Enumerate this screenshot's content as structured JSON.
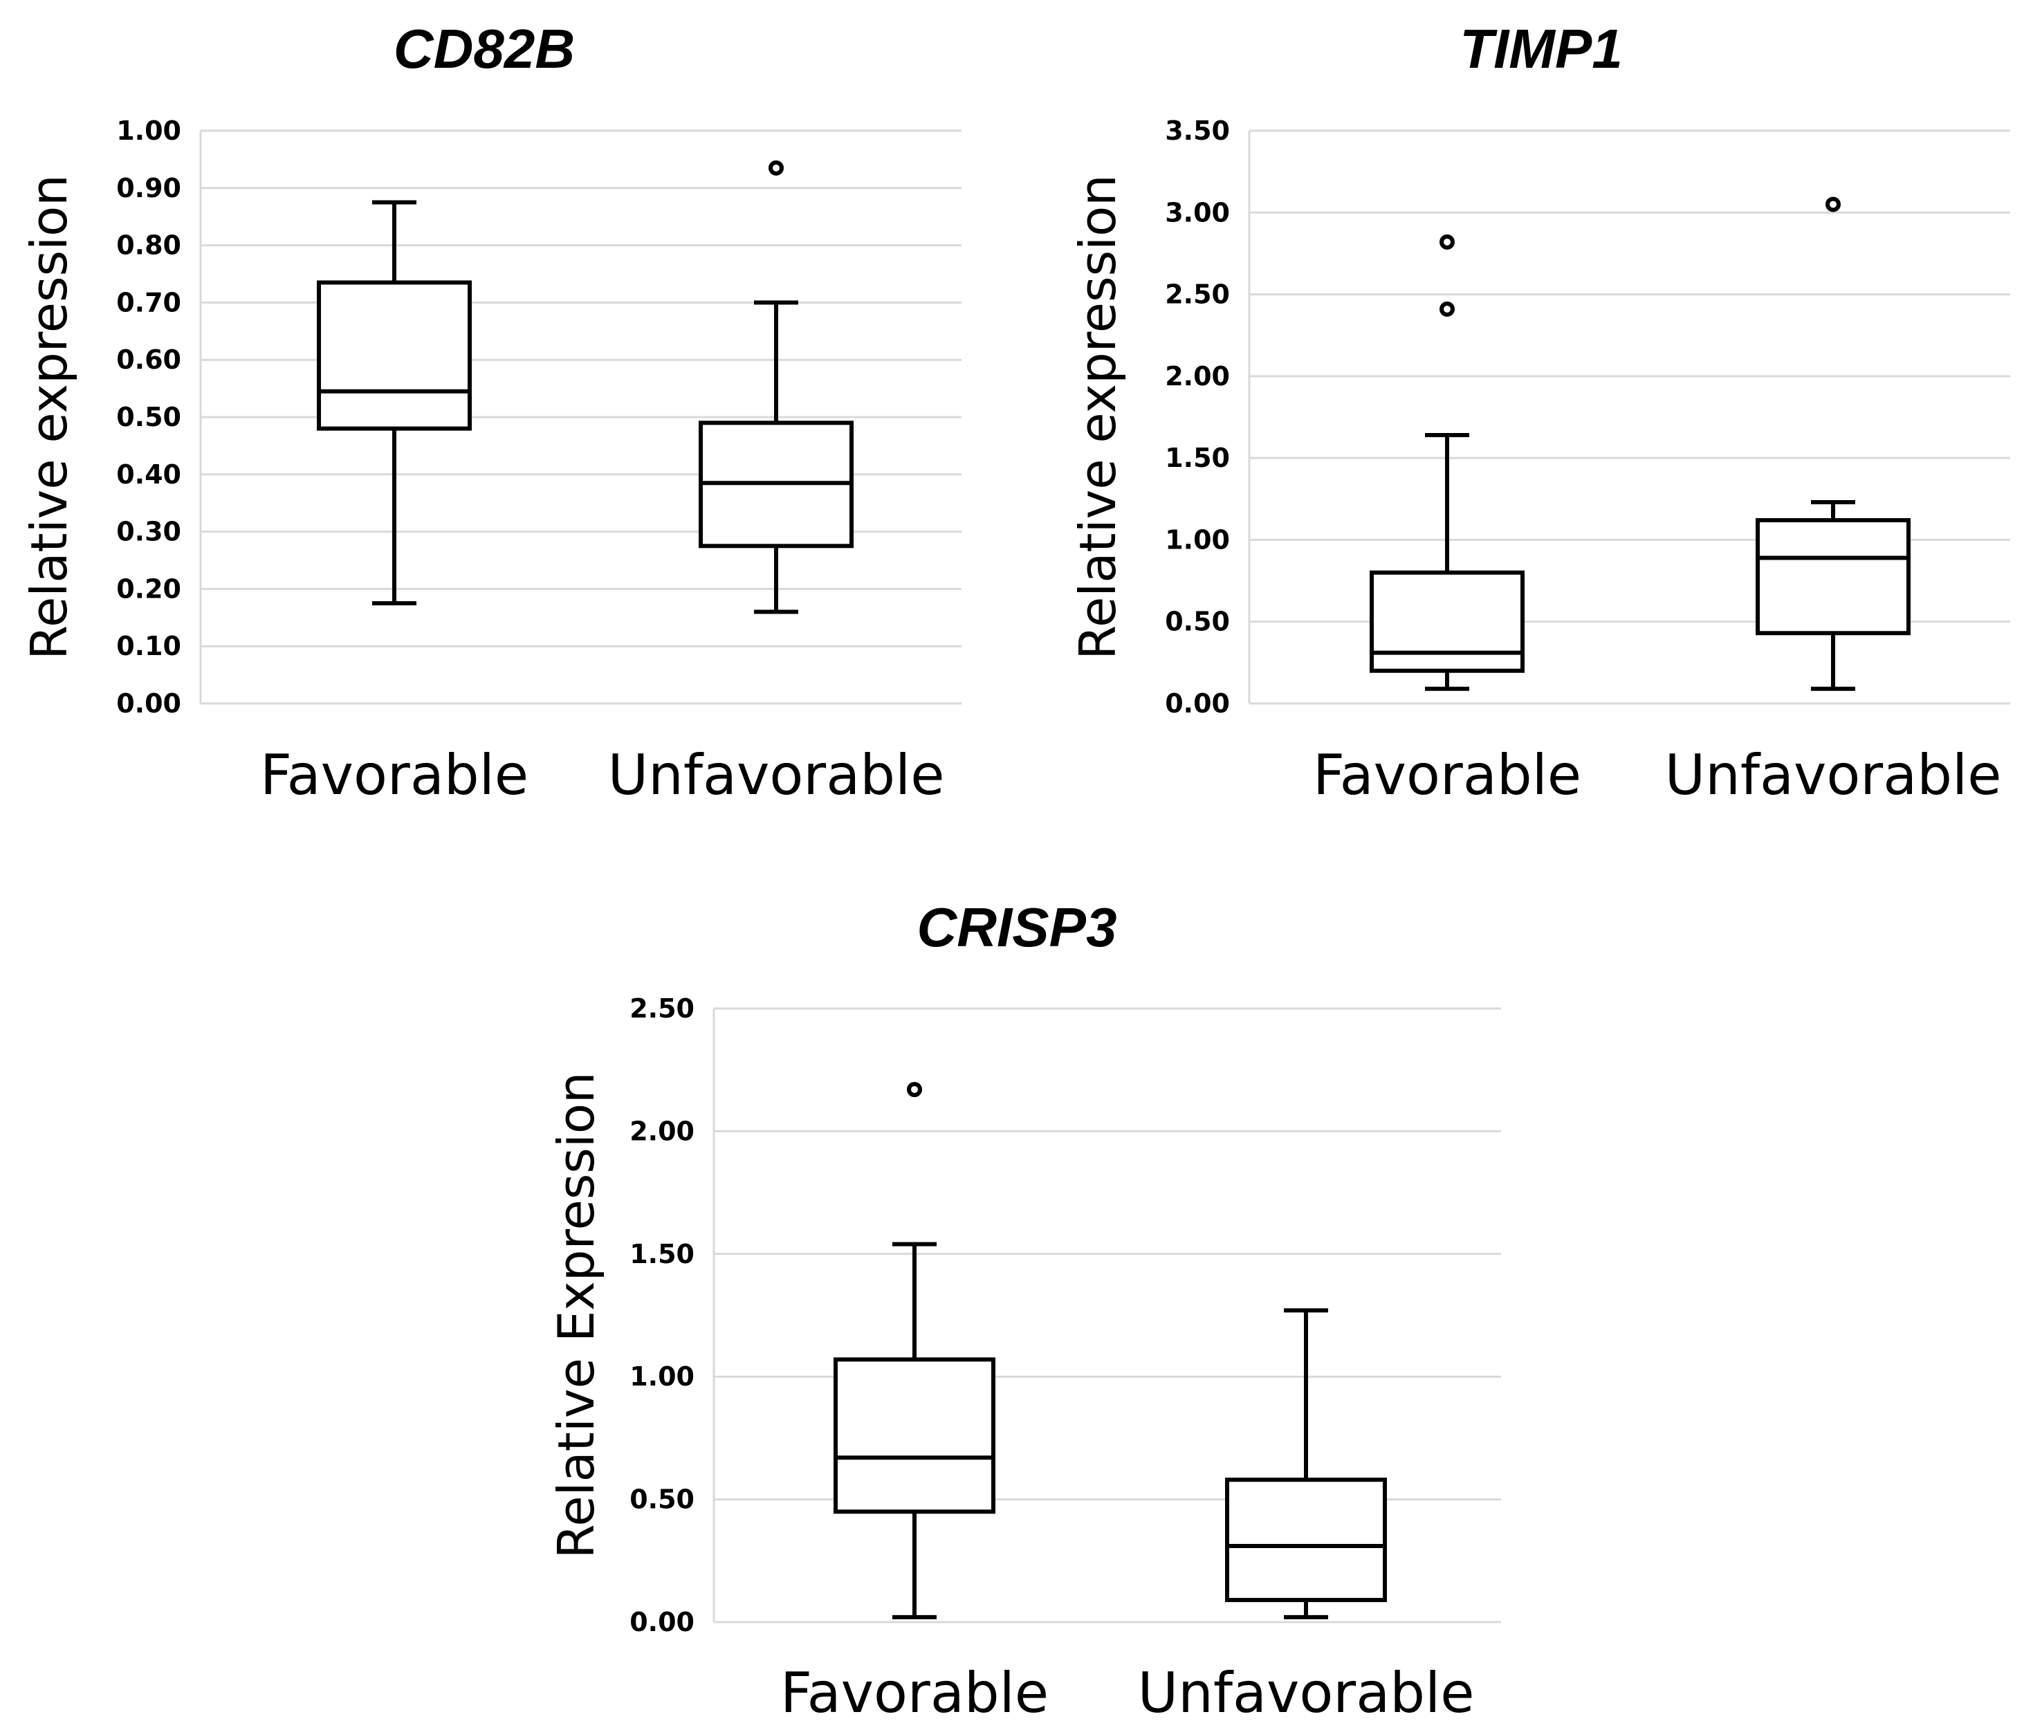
{
  "chart_data": [
    {
      "type": "boxplot",
      "title": "CD82B",
      "ylabel": "Relative expression",
      "xlabel": "",
      "ylim": [
        0,
        1.0
      ],
      "yticks": [
        "0.00",
        "0.10",
        "0.20",
        "0.30",
        "0.40",
        "0.50",
        "0.60",
        "0.70",
        "0.80",
        "0.90",
        "1.00"
      ],
      "ytick_values": [
        0,
        0.1,
        0.2,
        0.3,
        0.4,
        0.5,
        0.6,
        0.7,
        0.8,
        0.9,
        1.0
      ],
      "categories": [
        "Favorable",
        "Unfavorable"
      ],
      "boxes": [
        {
          "category": "Favorable",
          "min": 0.175,
          "q1": 0.48,
          "median": 0.545,
          "q3": 0.735,
          "max": 0.875,
          "outliers": []
        },
        {
          "category": "Unfavorable",
          "min": 0.16,
          "q1": 0.275,
          "median": 0.385,
          "q3": 0.49,
          "max": 0.7,
          "outliers": [
            0.935
          ]
        }
      ]
    },
    {
      "type": "boxplot",
      "title": "TIMP1",
      "ylabel": "Relative expression",
      "xlabel": "",
      "ylim": [
        0,
        3.5
      ],
      "yticks": [
        "0.00",
        "0.50",
        "1.00",
        "1.50",
        "2.00",
        "2.50",
        "3.00",
        "3.50"
      ],
      "ytick_values": [
        0,
        0.5,
        1.0,
        1.5,
        2.0,
        2.5,
        3.0,
        3.5
      ],
      "categories": [
        "Favorable",
        "Unfavorable"
      ],
      "boxes": [
        {
          "category": "Favorable",
          "min": 0.09,
          "q1": 0.2,
          "median": 0.31,
          "q3": 0.8,
          "max": 1.64,
          "outliers": [
            2.41,
            2.82
          ]
        },
        {
          "category": "Unfavorable",
          "min": 0.09,
          "q1": 0.43,
          "median": 0.89,
          "q3": 1.12,
          "max": 1.23,
          "outliers": [
            3.05
          ]
        }
      ]
    },
    {
      "type": "boxplot",
      "title": "CRISP3",
      "ylabel": "Relative Expression",
      "xlabel": "",
      "ylim": [
        0,
        2.5
      ],
      "yticks": [
        "0.00",
        "0.50",
        "1.00",
        "1.50",
        "2.00",
        "2.50"
      ],
      "ytick_values": [
        0,
        0.5,
        1.0,
        1.5,
        2.0,
        2.5
      ],
      "categories": [
        "Favorable",
        "Unfavorable"
      ],
      "boxes": [
        {
          "category": "Favorable",
          "min": 0.02,
          "q1": 0.45,
          "median": 0.67,
          "q3": 1.07,
          "max": 1.54,
          "outliers": [
            2.17
          ]
        },
        {
          "category": "Unfavorable",
          "min": 0.02,
          "q1": 0.09,
          "median": 0.31,
          "q3": 0.58,
          "max": 1.27,
          "outliers": []
        }
      ]
    }
  ]
}
